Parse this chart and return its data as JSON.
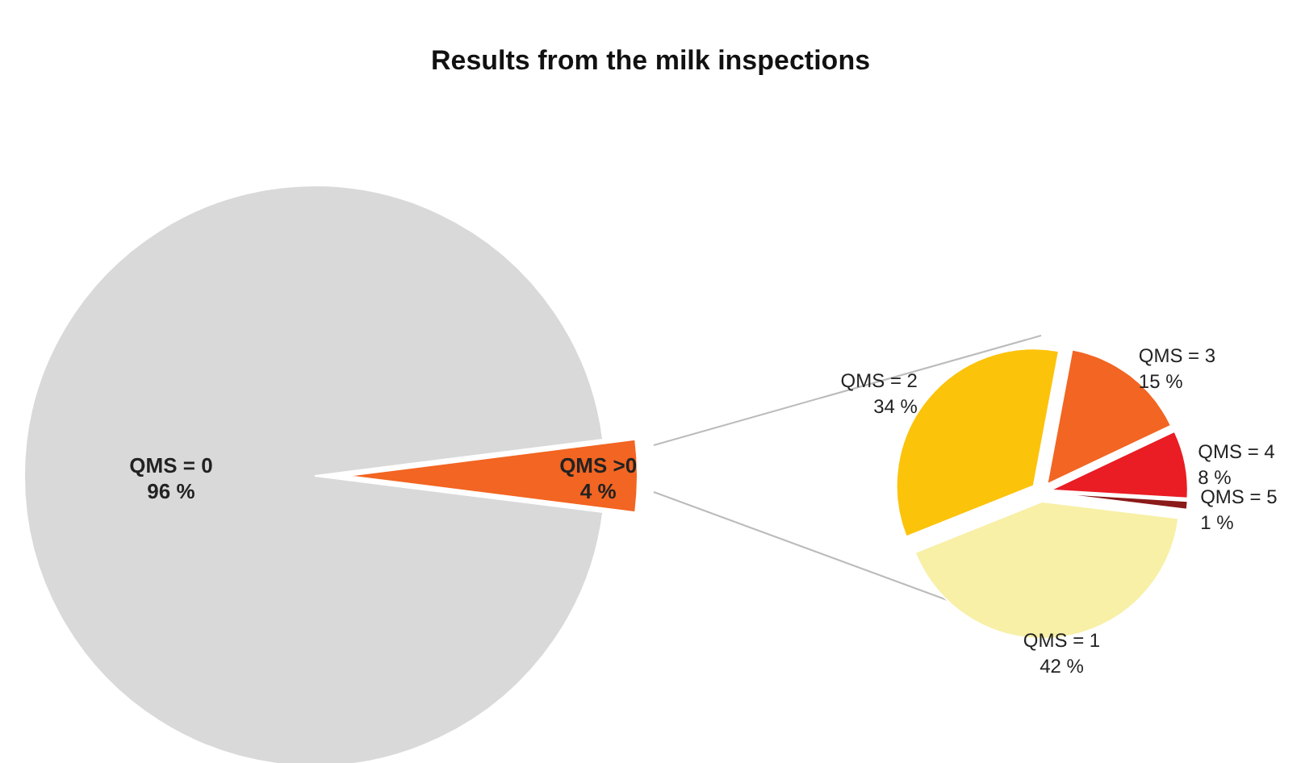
{
  "chart_data": [
    {
      "type": "pie",
      "title": "Results from the milk inspections",
      "categories": [
        "QMS = 0",
        "QMS >0"
      ],
      "values": [
        96,
        4
      ],
      "colors": [
        "#d9d9d9",
        "#f26522"
      ],
      "value_labels": [
        "96 %",
        "4 %"
      ],
      "legend": false
    },
    {
      "type": "pie",
      "categories": [
        "QMS = 1",
        "QMS = 2",
        "QMS = 3",
        "QMS = 4",
        "QMS = 5"
      ],
      "values": [
        42,
        34,
        15,
        8,
        1
      ],
      "colors": [
        "#f7f0a6",
        "#fcc30b",
        "#f26522",
        "#ea1c24",
        "#8b1a1a"
      ],
      "value_labels": [
        "42 %",
        "34 %",
        "15 %",
        "8 %",
        "1 %"
      ],
      "legend": false
    }
  ]
}
